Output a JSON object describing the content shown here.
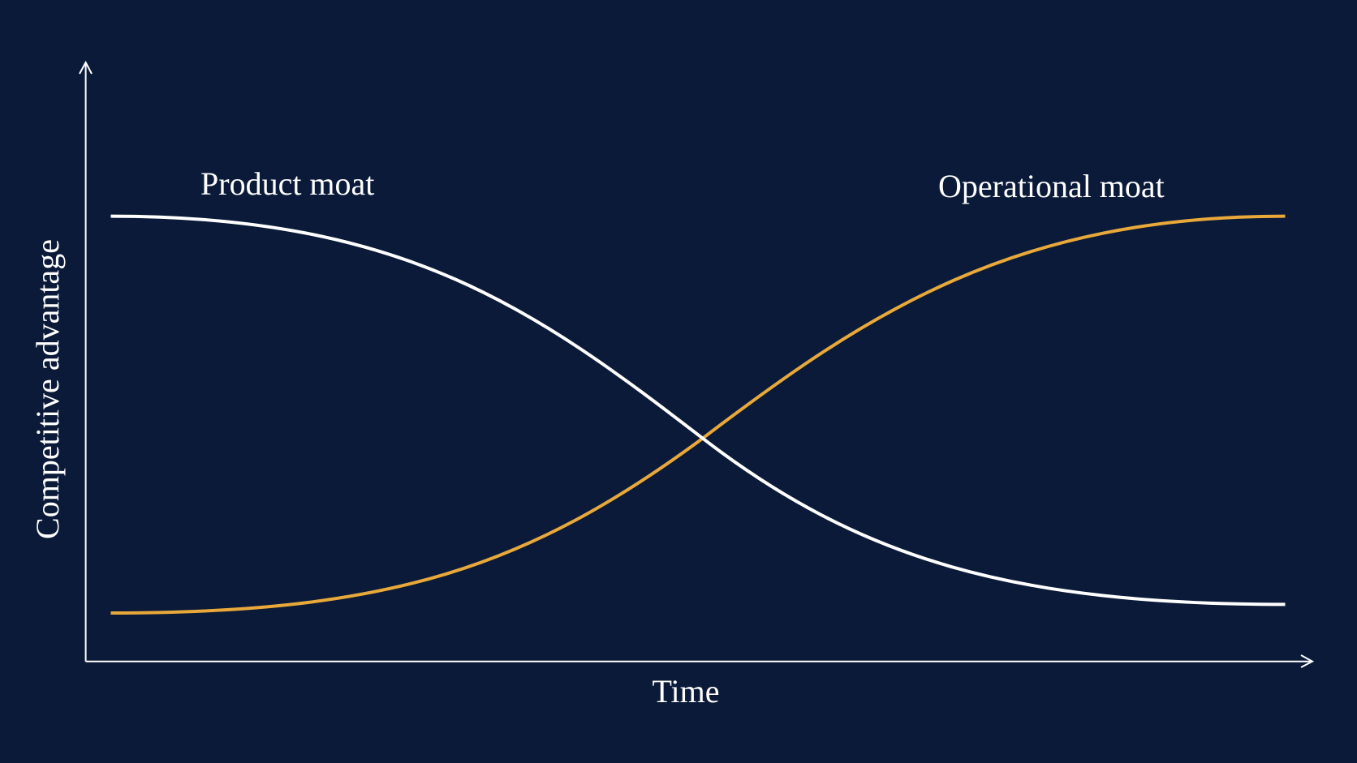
{
  "axes": {
    "y_label": "Competitive advantage",
    "x_label": "Time"
  },
  "curves": [
    {
      "label": "Product moat"
    },
    {
      "label": "Operational moat"
    }
  ]
}
